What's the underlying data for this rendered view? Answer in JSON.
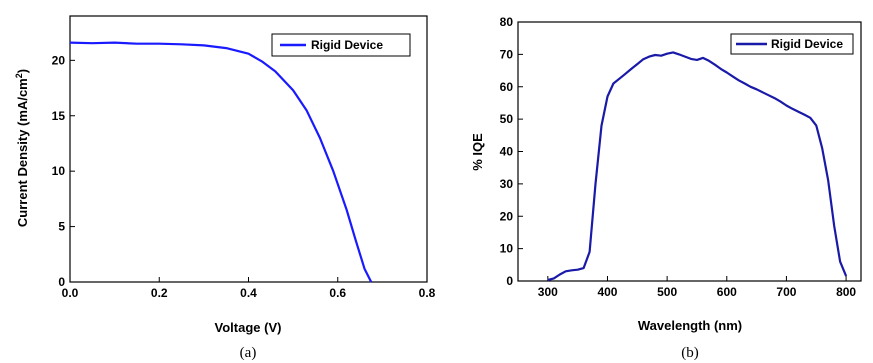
{
  "chart_data": [
    {
      "type": "line",
      "panel_label": "(a)",
      "xlabel": "Voltage (V)",
      "ylabel_text": "Current Density (mA/cm",
      "ylabel_sup": "2",
      "ylabel_end": ")",
      "xlim": [
        0.0,
        0.8
      ],
      "ylim": [
        0,
        24
      ],
      "xticks": [
        "0.0",
        "0.2",
        "0.4",
        "0.6",
        "0.8"
      ],
      "yticks": [
        "0",
        "5",
        "10",
        "15",
        "20"
      ],
      "legend": "top-right",
      "series": [
        {
          "name": "Rigid Device",
          "color": "#1a1aff",
          "x": [
            0.0,
            0.05,
            0.1,
            0.15,
            0.2,
            0.25,
            0.3,
            0.35,
            0.4,
            0.43,
            0.46,
            0.5,
            0.53,
            0.56,
            0.59,
            0.62,
            0.64,
            0.66,
            0.675
          ],
          "y": [
            21.6,
            21.55,
            21.6,
            21.5,
            21.5,
            21.45,
            21.35,
            21.1,
            20.6,
            19.9,
            19.0,
            17.3,
            15.5,
            13.0,
            10.0,
            6.5,
            3.8,
            1.2,
            0.0
          ]
        }
      ]
    },
    {
      "type": "line",
      "panel_label": "(b)",
      "xlabel": "Wavelength (nm)",
      "ylabel": "% IQE",
      "xlim": [
        250,
        825
      ],
      "ylim": [
        0,
        80
      ],
      "xticks": [
        "300",
        "400",
        "500",
        "600",
        "700",
        "800"
      ],
      "yticks": [
        "0",
        "10",
        "20",
        "30",
        "40",
        "50",
        "60",
        "70",
        "80"
      ],
      "legend": "top-right",
      "series": [
        {
          "name": "Rigid Device",
          "color": "#1a1aa8",
          "x": [
            300,
            310,
            320,
            330,
            340,
            350,
            360,
            370,
            380,
            390,
            400,
            410,
            420,
            430,
            440,
            450,
            460,
            470,
            480,
            490,
            500,
            510,
            520,
            530,
            540,
            550,
            560,
            570,
            580,
            590,
            600,
            610,
            620,
            630,
            640,
            650,
            660,
            670,
            680,
            690,
            700,
            710,
            720,
            730,
            740,
            750,
            760,
            770,
            780,
            790,
            800
          ],
          "y": [
            0.3,
            0.8,
            2.0,
            3.0,
            3.3,
            3.5,
            4.0,
            9.0,
            30.0,
            48.0,
            57.0,
            61.0,
            62.5,
            64.0,
            65.5,
            67.0,
            68.5,
            69.3,
            69.8,
            69.6,
            70.2,
            70.6,
            70.0,
            69.3,
            68.6,
            68.3,
            68.9,
            68.0,
            66.8,
            65.5,
            64.4,
            63.2,
            62.0,
            61.0,
            60.0,
            59.2,
            58.3,
            57.4,
            56.5,
            55.4,
            54.2,
            53.2,
            52.3,
            51.4,
            50.4,
            48.0,
            41.0,
            31.0,
            17.0,
            6.0,
            1.5
          ]
        }
      ]
    }
  ]
}
